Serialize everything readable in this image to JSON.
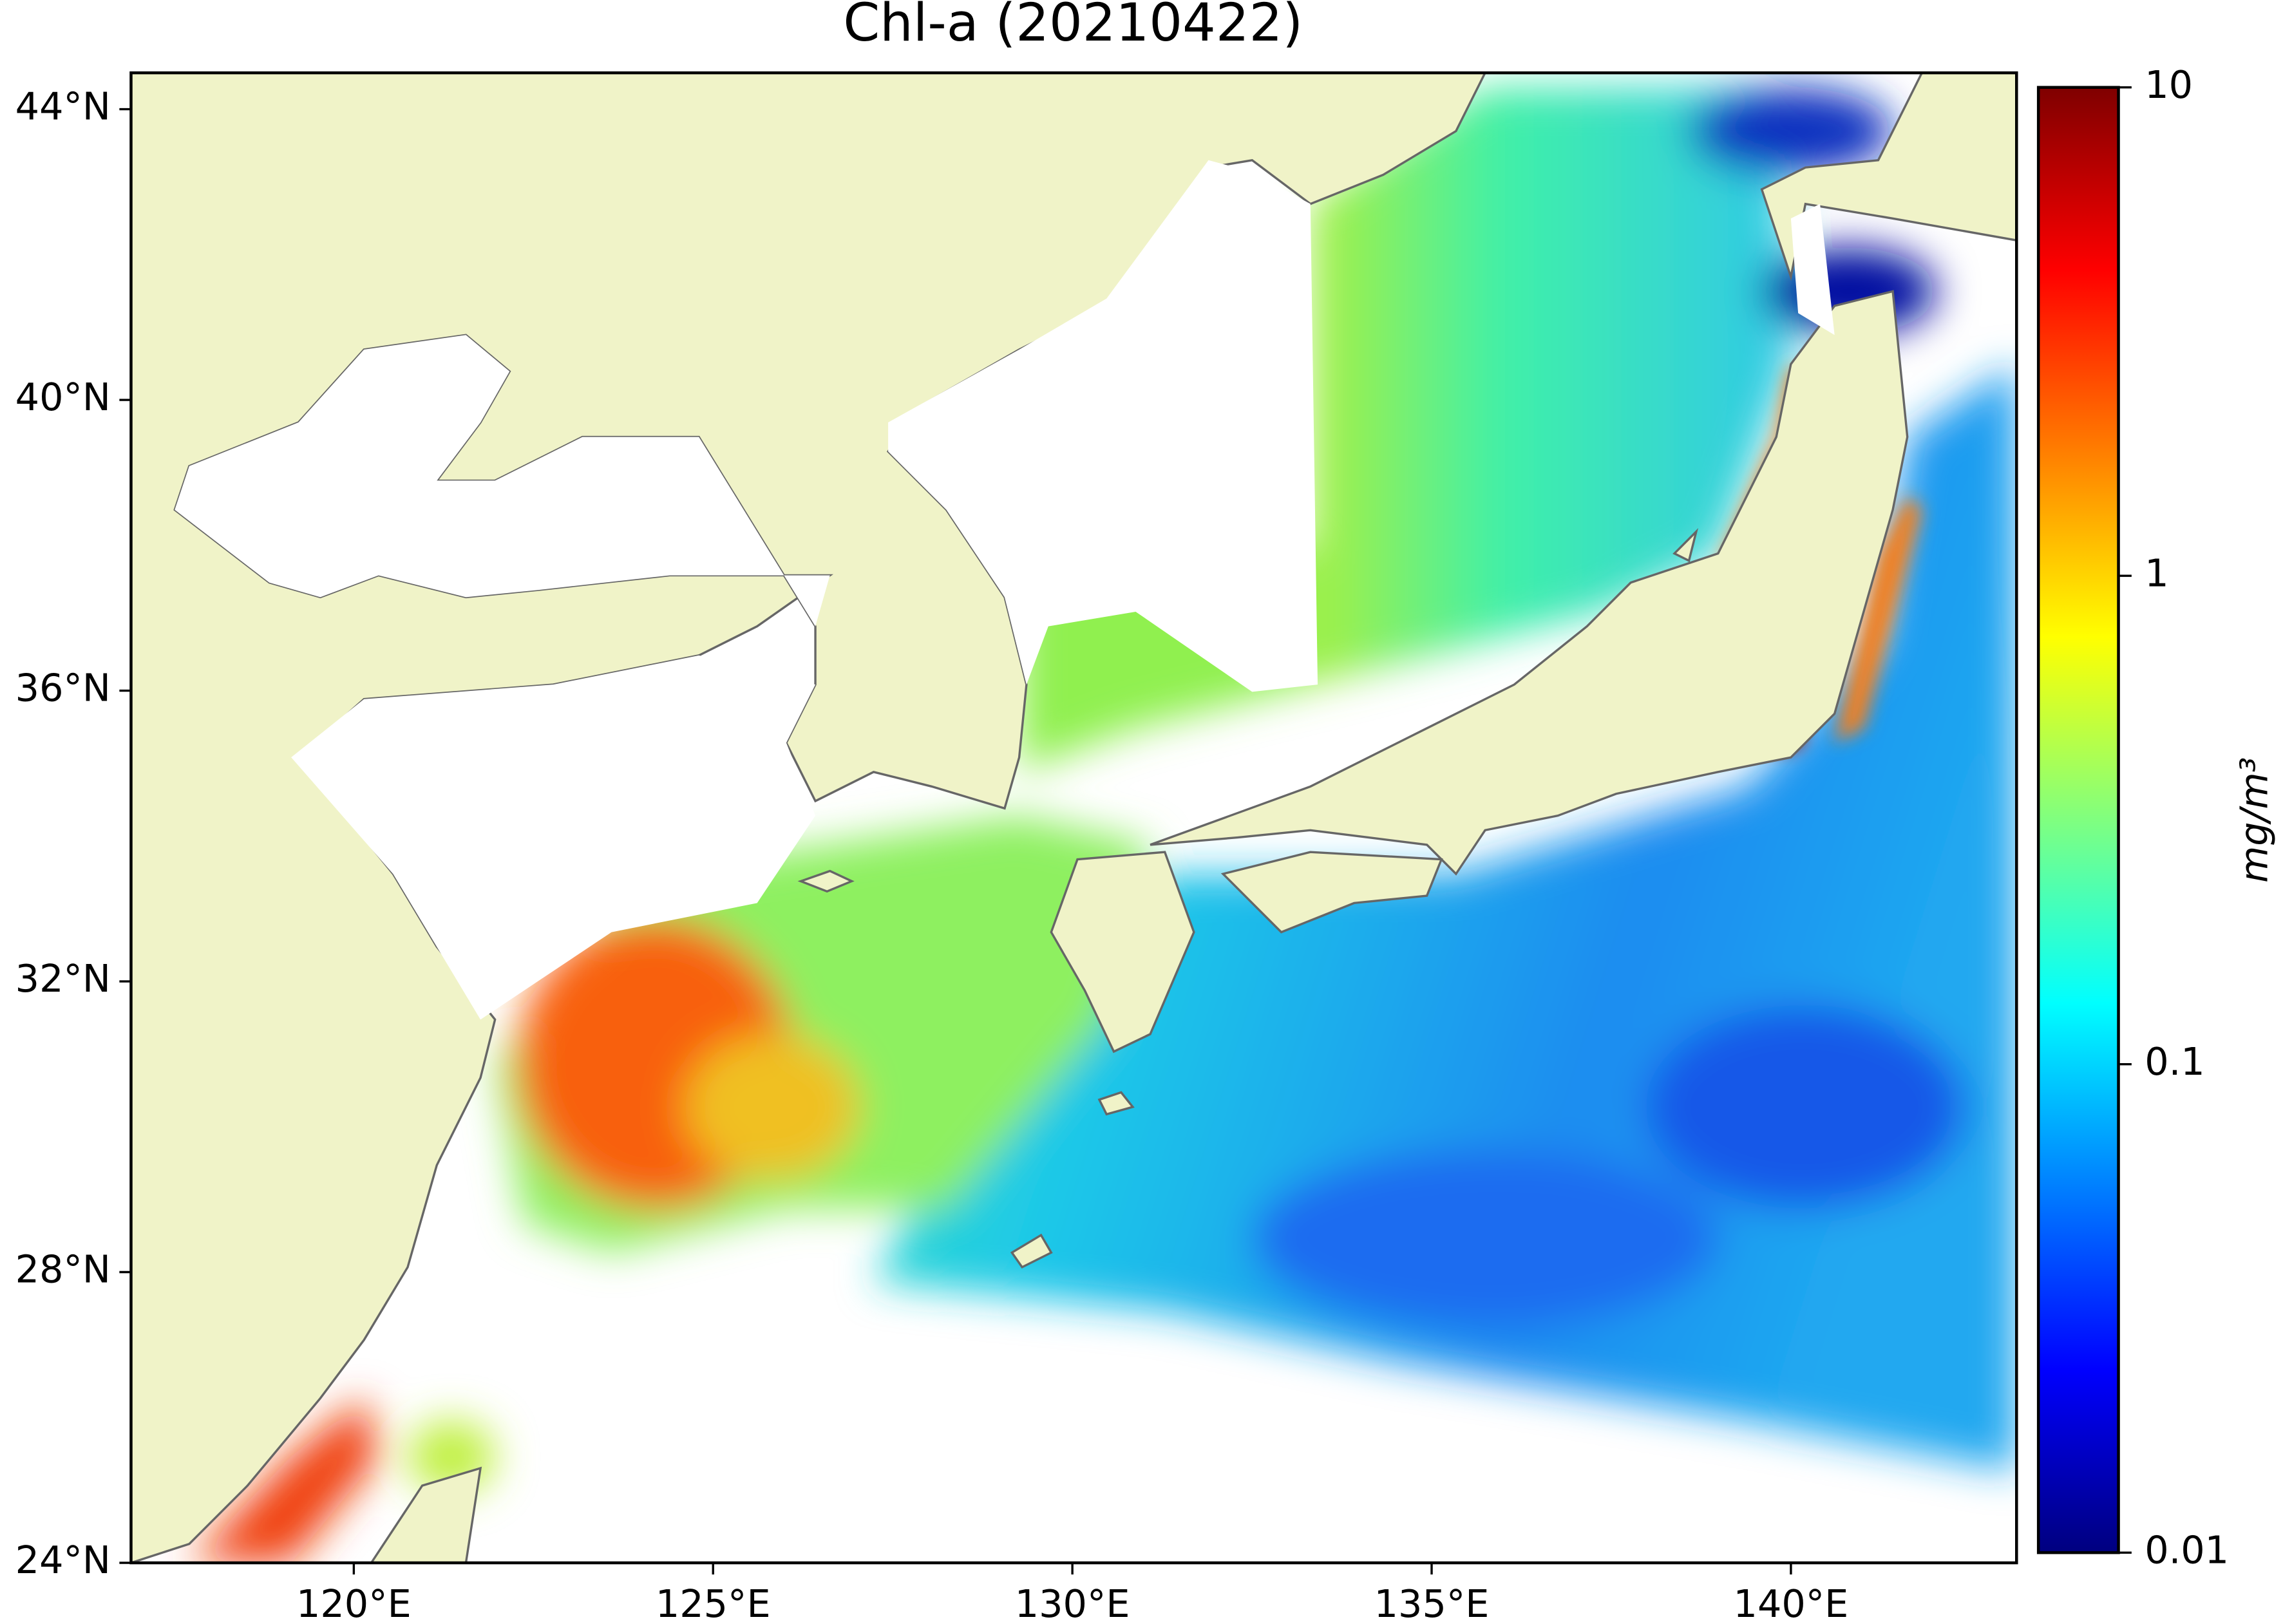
{
  "chart_data": {
    "type": "map",
    "title": "Chl-a (20210422)",
    "xlim": [
      116.9,
      143.14
    ],
    "ylim": [
      24,
      44.5
    ],
    "xticks": [
      {
        "value": 120,
        "label": "120°E"
      },
      {
        "value": 125,
        "label": "125°E"
      },
      {
        "value": 130,
        "label": "130°E"
      },
      {
        "value": 135,
        "label": "135°E"
      },
      {
        "value": 140,
        "label": "140°E"
      }
    ],
    "yticks": [
      {
        "value": 24,
        "label": "24°N"
      },
      {
        "value": 28,
        "label": "28°N"
      },
      {
        "value": 32,
        "label": "32°N"
      },
      {
        "value": 36,
        "label": "36°N"
      },
      {
        "value": 40,
        "label": "40°N"
      },
      {
        "value": 44,
        "label": "44°N"
      }
    ],
    "colorbar": {
      "label": "mg/m³",
      "lim": [
        0.01,
        10
      ],
      "ticks": [
        0.01,
        0.1,
        1,
        10
      ],
      "log": true,
      "colormap": "jet"
    }
  }
}
